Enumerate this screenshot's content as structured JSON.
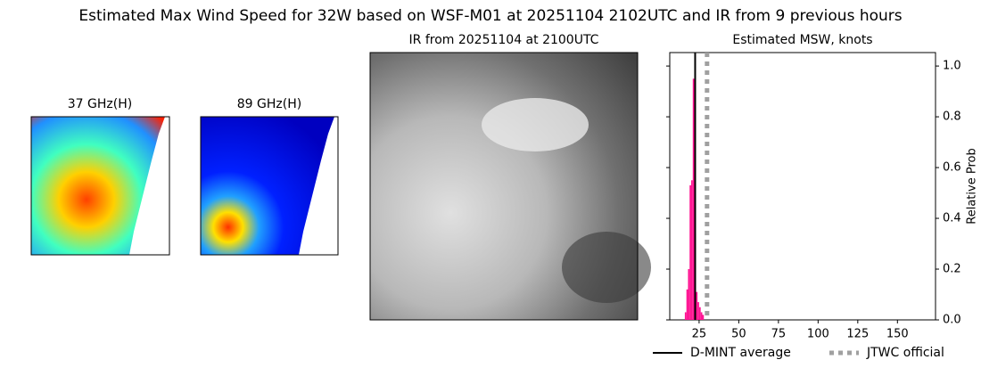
{
  "title": "Estimated Max Wind Speed for 32W based on WSF-M01 at 20251104 2102UTC and IR from 9 previous hours",
  "panels": [
    {
      "title": "37 GHz(H)"
    },
    {
      "title": "89 GHz(H)"
    },
    {
      "title": "IR from 20251104 at 2100UTC"
    }
  ],
  "chart_data": {
    "type": "histogram",
    "title": "Estimated MSW, knots",
    "y_label": "Relative Prob",
    "bins": [
      16,
      17,
      18,
      19,
      20,
      21,
      22,
      23,
      24,
      25,
      26,
      27,
      28
    ],
    "values": [
      0.03,
      0.12,
      0.2,
      0.53,
      0.55,
      0.95,
      0.34,
      0.11,
      0.07,
      0.05,
      0.03,
      0.02
    ],
    "color": "#ff1493",
    "lines": [
      {
        "name": "D-MINT average",
        "x": 22.5,
        "color": "#000000",
        "style": "solid"
      },
      {
        "name": "JTWC official",
        "x": 30,
        "color": "#a0a0a0",
        "style": "dotted"
      }
    ],
    "xlim": [
      6.5,
      174
    ],
    "xticks": [
      25,
      50,
      75,
      100,
      125,
      150
    ],
    "ylim": [
      0,
      1.053
    ],
    "yticks": [
      {
        "value": 0,
        "label": "0.0"
      },
      0.2,
      0.4,
      0.6,
      0.8,
      {
        "value": 1,
        "label": "1.0"
      }
    ],
    "y_axis_side": "right"
  }
}
